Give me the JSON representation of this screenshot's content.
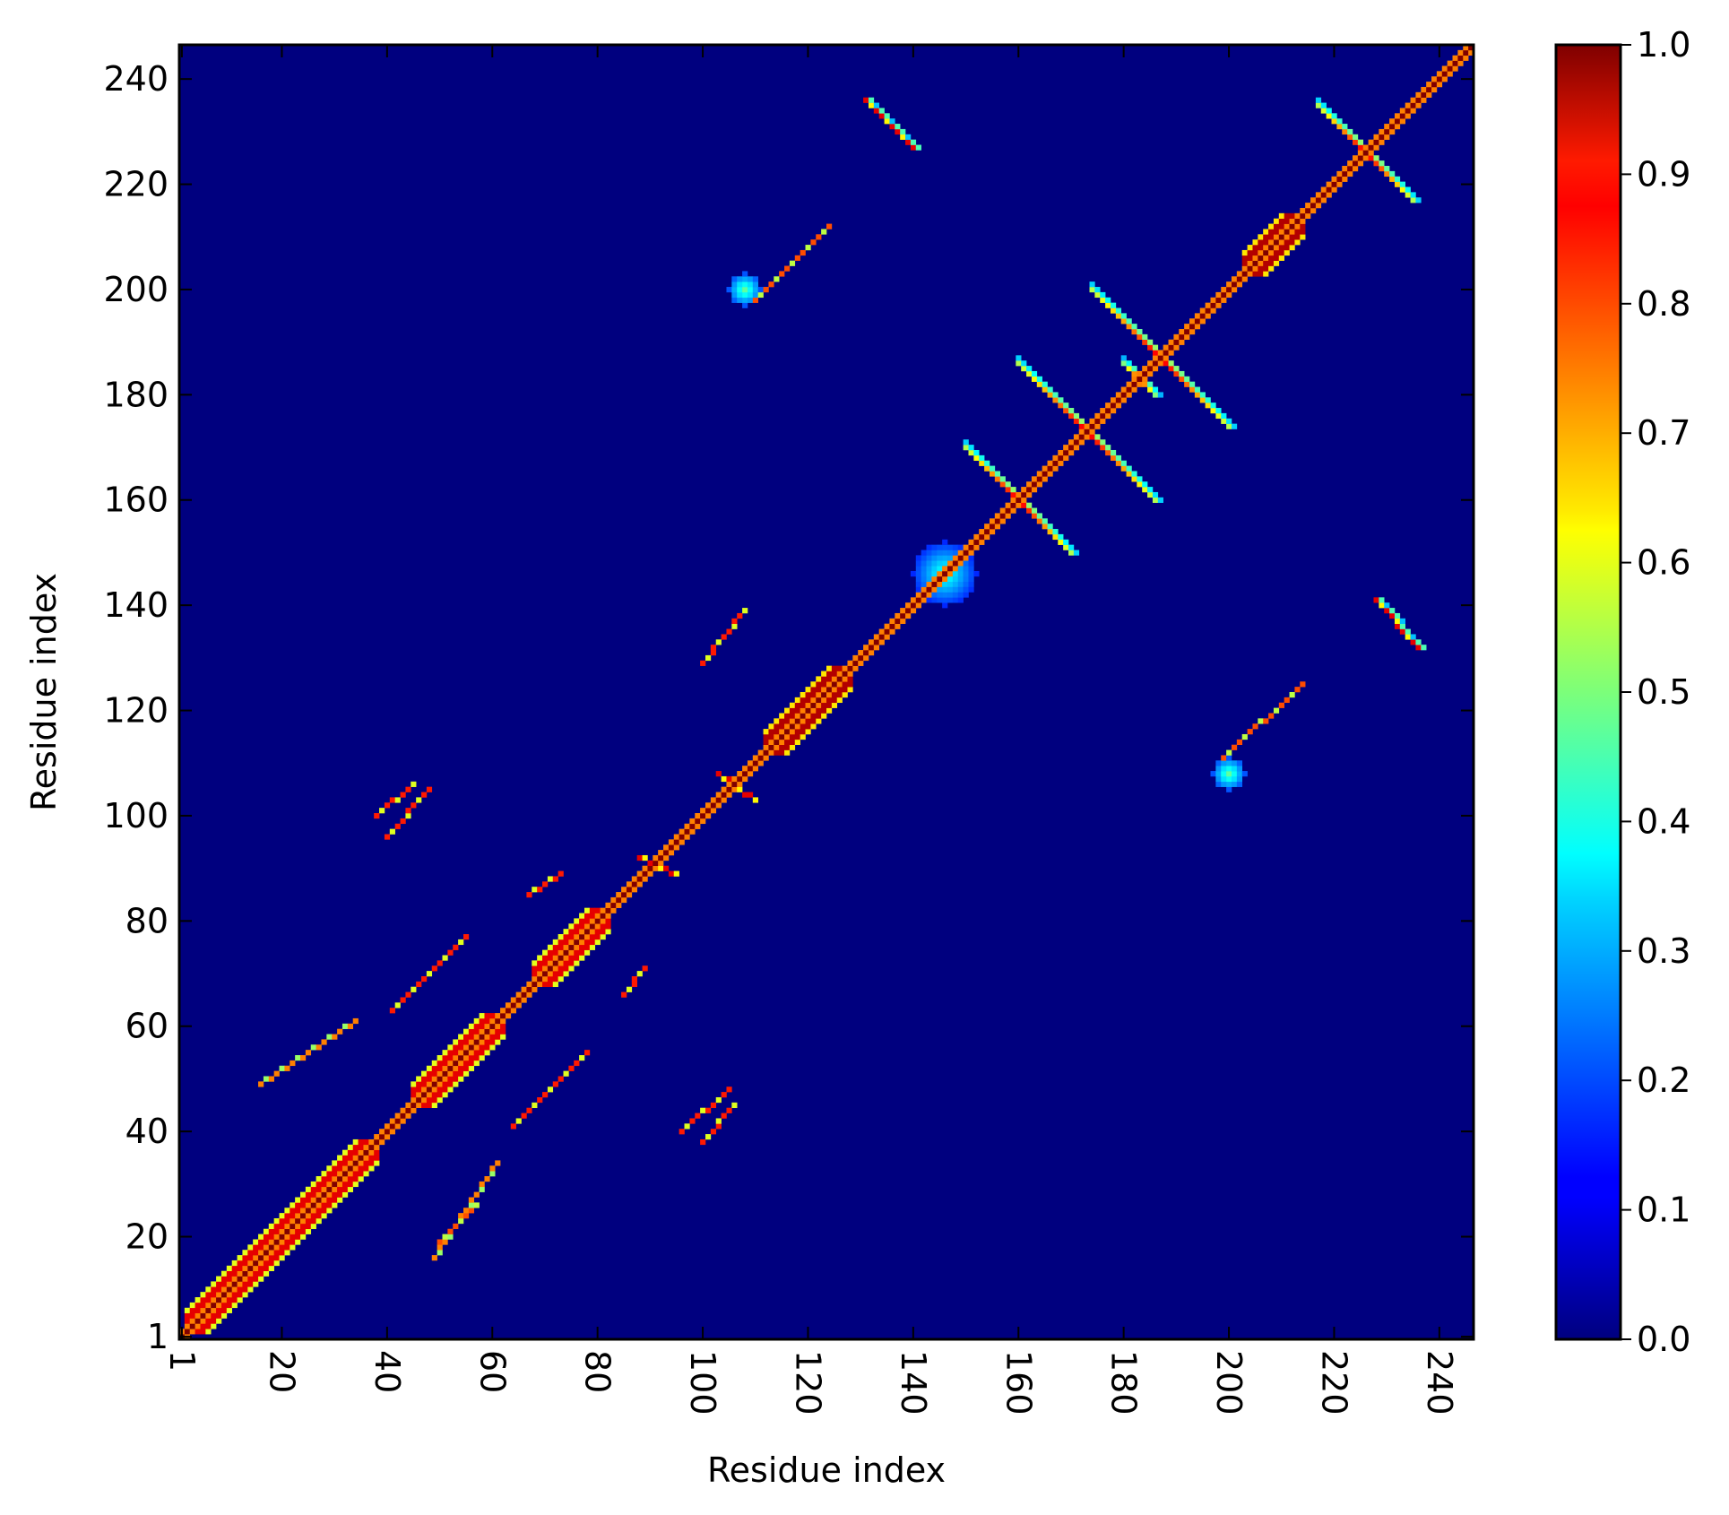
{
  "chart_data": {
    "type": "heatmap",
    "title": "",
    "xlabel": "Residue index",
    "ylabel": "Residue index",
    "n_residues": 246,
    "xlim": [
      1,
      246
    ],
    "ylim": [
      1,
      246
    ],
    "x_ticks": [
      1,
      20,
      40,
      60,
      80,
      100,
      120,
      140,
      160,
      180,
      200,
      220,
      240
    ],
    "y_ticks": [
      1,
      20,
      40,
      60,
      80,
      100,
      120,
      140,
      160,
      180,
      200,
      220,
      240
    ],
    "x_tick_rotation": "vertical",
    "colorbar": {
      "colormap": "jet",
      "range": [
        0.0,
        1.0
      ],
      "ticks": [
        "0.0",
        "0.1",
        "0.2",
        "0.3",
        "0.4",
        "0.5",
        "0.6",
        "0.7",
        "0.8",
        "0.9",
        "1.0"
      ]
    },
    "background_value": 0.0,
    "grid": false,
    "symmetric": true,
    "features": [
      {
        "kind": "diagonal",
        "from": 1,
        "to": 246,
        "value": 1.0
      },
      {
        "kind": "helix_band",
        "from": 2,
        "to": 38,
        "value": 0.9
      },
      {
        "kind": "helix_band",
        "from": 45,
        "to": 62,
        "value": 0.9
      },
      {
        "kind": "helix_band",
        "from": 68,
        "to": 82,
        "value": 0.9
      },
      {
        "kind": "helix_band",
        "from": 112,
        "to": 128,
        "value": 0.95
      },
      {
        "kind": "helix_band",
        "from": 203,
        "to": 214,
        "value": 0.95
      },
      {
        "kind": "antiparallel",
        "center": [
          160,
          160
        ],
        "half_length": 10,
        "value": 0.9
      },
      {
        "kind": "antiparallel",
        "center": [
          173,
          173
        ],
        "half_length": 13,
        "value": 0.9
      },
      {
        "kind": "antiparallel",
        "center": [
          187,
          187
        ],
        "half_length": 13,
        "value": 0.9
      },
      {
        "kind": "antiparallel",
        "center": [
          226,
          226
        ],
        "half_length": 9,
        "value": 0.9
      },
      {
        "kind": "antiparallel",
        "center": [
          183,
          183
        ],
        "half_length": 3,
        "value": 0.85
      },
      {
        "kind": "antiparallel_offdiag",
        "start": [
          131,
          236
        ],
        "end": [
          140,
          227
        ],
        "value": 0.9
      },
      {
        "kind": "antiparallel_offdiag",
        "start": [
          228,
          141
        ],
        "end": [
          236,
          132
        ],
        "value": 0.9
      },
      {
        "kind": "line_contact",
        "start": [
          100,
          129
        ],
        "end": [
          108,
          139
        ],
        "value": 0.85
      },
      {
        "kind": "line_contact",
        "start": [
          88,
          92
        ],
        "end": [
          95,
          89
        ],
        "value": 0.9
      },
      {
        "kind": "line_contact",
        "start": [
          103,
          108
        ],
        "end": [
          110,
          103
        ],
        "value": 0.9
      },
      {
        "kind": "line_contact",
        "start": [
          110,
          198
        ],
        "end": [
          124,
          212
        ],
        "value": 0.8
      },
      {
        "kind": "line_contact",
        "start": [
          199,
          111
        ],
        "end": [
          214,
          125
        ],
        "value": 0.8
      },
      {
        "kind": "line_contact",
        "start": [
          50,
          19
        ],
        "end": [
          57,
          26
        ],
        "value": 0.8
      },
      {
        "kind": "line_contact",
        "start": [
          64,
          41
        ],
        "end": [
          78,
          55
        ],
        "value": 0.85
      },
      {
        "kind": "line_contact",
        "start": [
          41,
          63
        ],
        "end": [
          55,
          77
        ],
        "value": 0.85
      },
      {
        "kind": "line_contact",
        "start": [
          67,
          85
        ],
        "end": [
          73,
          89
        ],
        "value": 0.85
      },
      {
        "kind": "line_contact",
        "start": [
          85,
          66
        ],
        "end": [
          89,
          71
        ],
        "value": 0.85
      },
      {
        "kind": "line_contact",
        "start": [
          16,
          49
        ],
        "end": [
          34,
          61
        ],
        "value": 0.75
      },
      {
        "kind": "line_contact",
        "start": [
          49,
          16
        ],
        "end": [
          61,
          34
        ],
        "value": 0.75
      },
      {
        "kind": "line_contact",
        "start": [
          38,
          100
        ],
        "end": [
          45,
          106
        ],
        "value": 0.85
      },
      {
        "kind": "line_contact",
        "start": [
          100,
          38
        ],
        "end": [
          106,
          45
        ],
        "value": 0.85
      },
      {
        "kind": "line_contact",
        "start": [
          96,
          40
        ],
        "end": [
          105,
          48
        ],
        "value": 0.85
      },
      {
        "kind": "line_contact",
        "start": [
          40,
          96
        ],
        "end": [
          48,
          105
        ],
        "value": 0.85
      },
      {
        "kind": "blob",
        "center": [
          146,
          146
        ],
        "radius": 6,
        "value": 0.3
      },
      {
        "kind": "blob",
        "center": [
          108,
          200
        ],
        "radius": 3,
        "value": 0.35
      },
      {
        "kind": "blob",
        "center": [
          200,
          108
        ],
        "radius": 3,
        "value": 0.35
      }
    ]
  }
}
